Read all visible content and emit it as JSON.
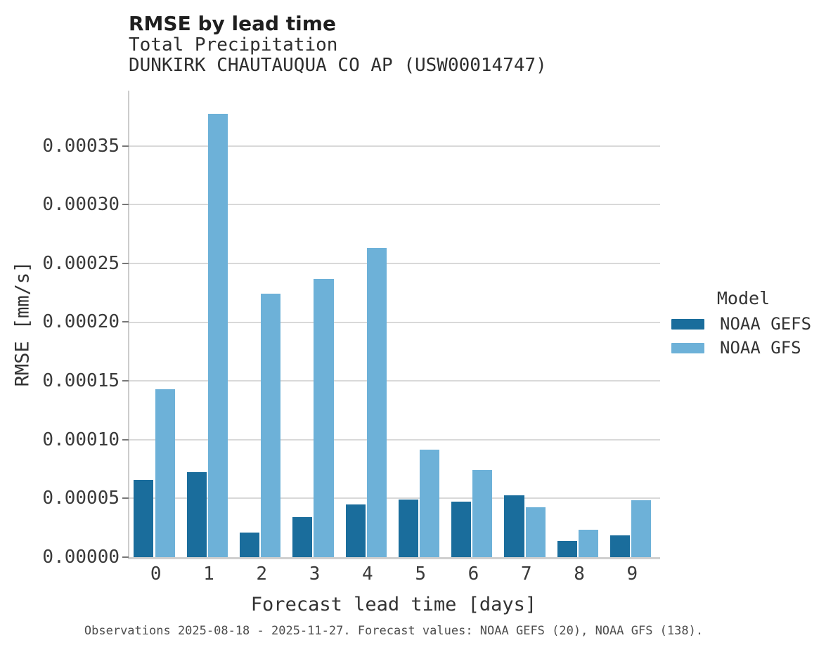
{
  "header": {
    "title": "RMSE by lead time",
    "subtitle_variable": "Total Precipitation",
    "subtitle_station": "DUNKIRK CHAUTAUQUA CO AP (USW00014747)"
  },
  "legend": {
    "title": "Model",
    "entries": [
      {
        "label": "NOAA GEFS",
        "color": "#1a6d9c"
      },
      {
        "label": "NOAA GFS",
        "color": "#6db1d8"
      }
    ]
  },
  "footer": {
    "text": "Observations 2025-08-18 - 2025-11-27. Forecast values: NOAA GEFS (20), NOAA GFS (138)."
  },
  "chart_data": {
    "type": "bar",
    "title": "RMSE by lead time",
    "subtitle": [
      "Total Precipitation",
      "DUNKIRK CHAUTAUQUA CO AP (USW00014747)"
    ],
    "xlabel": "Forecast lead time [days]",
    "ylabel": "RMSE [mm/s]",
    "categories": [
      "0",
      "1",
      "2",
      "3",
      "4",
      "5",
      "6",
      "7",
      "8",
      "9"
    ],
    "series": [
      {
        "name": "NOAA GEFS",
        "color": "#1a6d9c",
        "values": [
          6.6e-05,
          7.25e-05,
          2.1e-05,
          3.4e-05,
          4.5e-05,
          4.92e-05,
          4.7e-05,
          5.24e-05,
          1.39e-05,
          1.87e-05
        ]
      },
      {
        "name": "NOAA GFS",
        "color": "#6db1d8",
        "values": [
          0.000143,
          0.000377,
          0.000224,
          0.000237,
          0.000263,
          9.14e-05,
          7.41e-05,
          4.22e-05,
          2.33e-05,
          4.86e-05
        ]
      }
    ],
    "ylim": [
      0,
      0.000397
    ],
    "ytick_step": 5e-05,
    "ytick_labels": [
      "0.00000",
      "0.00005",
      "0.00010",
      "0.00015",
      "0.00020",
      "0.00025",
      "0.00030",
      "0.00035"
    ],
    "grid": "horizontal-only",
    "gridline_color": "#d9d9d9",
    "legend_position": "right",
    "legend_title": "Model"
  }
}
